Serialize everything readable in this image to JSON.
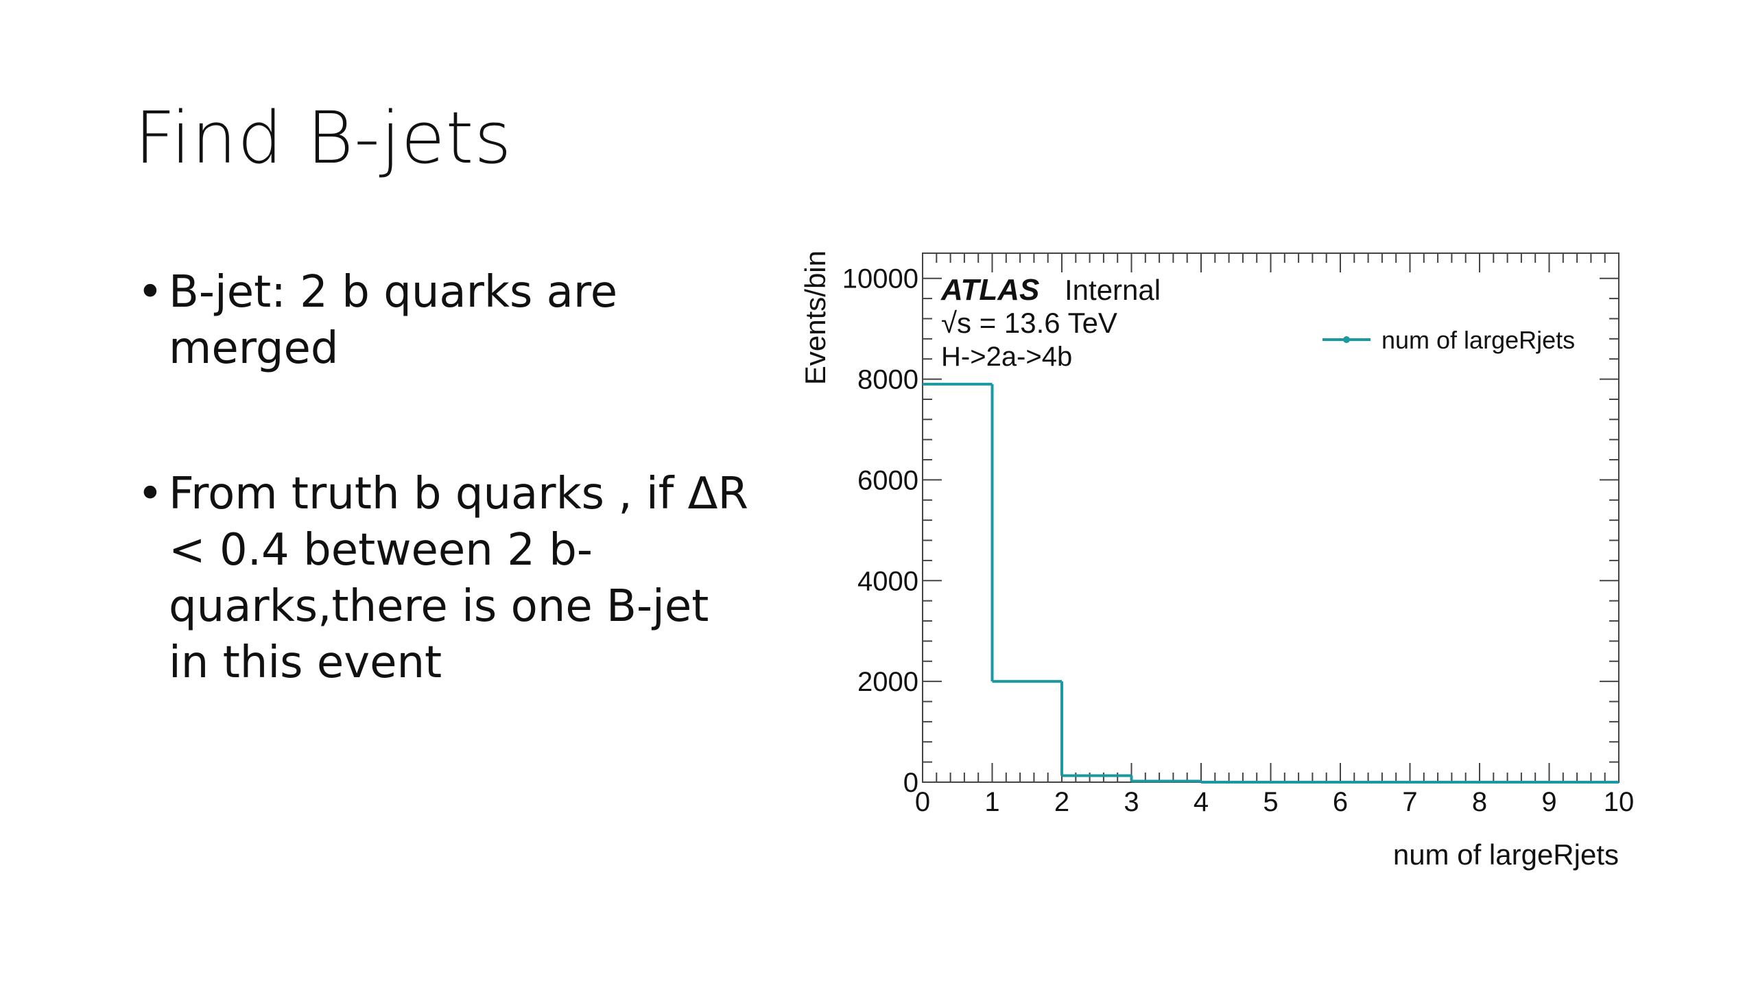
{
  "title": "Find B-jets",
  "bullets": [
    "B-jet: 2 b quarks are merged",
    "From truth b quarks , if ΔR < 0.4 between 2 b-quarks,there is one B-jet in this event"
  ],
  "chart_data": {
    "type": "histogram",
    "annotations": [
      "ATLAS",
      "Internal",
      "√s = 13.6 TeV",
      "H->2a->4b"
    ],
    "xlabel": "num of largeRjets",
    "ylabel": "Events/bin",
    "bins": [
      0,
      1,
      2,
      3,
      4,
      5,
      6,
      7,
      8,
      9,
      10
    ],
    "series": [
      {
        "name": "num of largeRjets",
        "color": "#1a9aa0",
        "values": [
          7900,
          2000,
          130,
          20,
          0,
          0,
          0,
          0,
          0,
          0
        ]
      }
    ],
    "xlim": [
      0,
      10
    ],
    "xticks": [
      0,
      1,
      2,
      3,
      4,
      5,
      6,
      7,
      8,
      9,
      10
    ],
    "ylim": [
      0,
      10500
    ],
    "yticks": [
      0,
      2000,
      4000,
      6000,
      8000,
      10000
    ],
    "legend": "upper right"
  }
}
